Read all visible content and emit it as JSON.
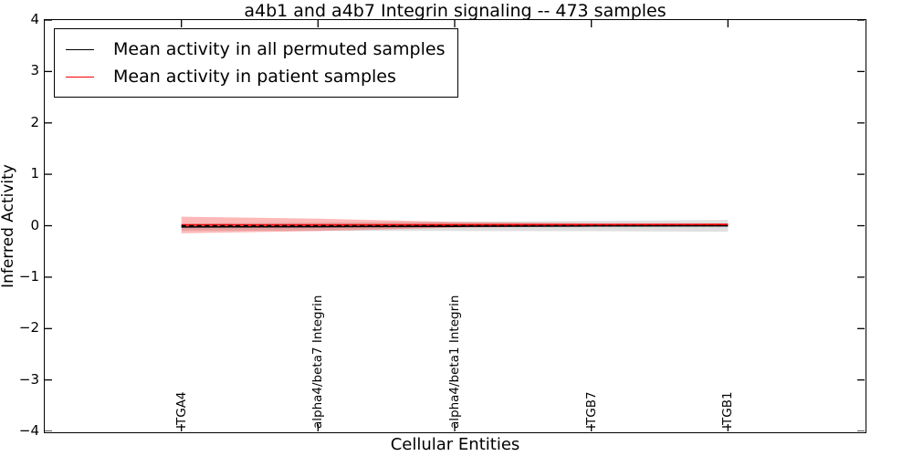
{
  "chart_data": {
    "type": "line",
    "title": "a4b1 and a4b7 Integrin signaling -- 473 samples",
    "xlabel": "Cellular Entities",
    "ylabel": "Inferred Activity",
    "xlim": [
      0,
      6
    ],
    "ylim": [
      -4,
      4
    ],
    "grid": false,
    "tick_style": "inward ticks on all four spines",
    "yticks": [
      {
        "value": 4,
        "label": "4"
      },
      {
        "value": 3,
        "label": "3"
      },
      {
        "value": 2,
        "label": "2"
      },
      {
        "value": 1,
        "label": "1"
      },
      {
        "value": 0,
        "label": "0"
      },
      {
        "value": -1,
        "label": "−1"
      },
      {
        "value": -2,
        "label": "−2"
      },
      {
        "value": -3,
        "label": "−3"
      },
      {
        "value": -4,
        "label": "−4"
      }
    ],
    "categories": [
      "ITGA4",
      "alpha4/beta7 Integrin",
      "alpha4/beta1 Integrin",
      "ITGB7",
      "ITGB1"
    ],
    "category_positions": [
      1,
      2,
      3,
      4,
      5
    ],
    "legend_position": "upper left",
    "series": [
      {
        "name": "Mean activity in all permuted samples",
        "color": "#000000",
        "linestyle": "solid",
        "linewidth": 1.5,
        "values": [
          -0.025,
          -0.02,
          -0.013,
          -0.006,
          -0.002
        ],
        "band_std": [
          0.07,
          0.08,
          0.09,
          0.1,
          0.115
        ],
        "band_color": "#000000",
        "band_opacity": 0.12
      },
      {
        "name": "Mean activity in patient samples",
        "color": "#ff0000",
        "linestyle": "solid",
        "linewidth": 1.7,
        "values": [
          0.015,
          0.016,
          0.018,
          0.02,
          0.024
        ],
        "band_std": [
          0.16,
          0.12,
          0.055,
          0.03,
          0.02
        ],
        "band_color": "#ff0000",
        "band_opacity": 0.28
      }
    ],
    "zero_line": {
      "value": 0,
      "color": "#000000",
      "linestyle": "dashed",
      "span": [
        1,
        5
      ]
    }
  }
}
